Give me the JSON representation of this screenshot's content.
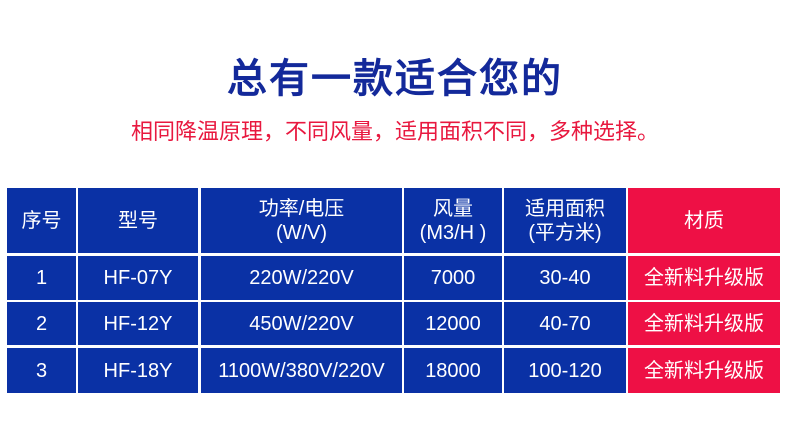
{
  "title": "总有一款适合您的",
  "subtitle": "相同降温原理，不同风量，适用面积不同，多种选择。",
  "colors": {
    "header_blue": "#0a31a5",
    "accent_red": "#ee1045",
    "title_blue": "#13299a"
  },
  "table": {
    "headers": [
      "序号",
      "型号",
      "功率/电压\n(W/V)",
      "风量\n(M3/H )",
      "适用面积\n(平方米)",
      "材质"
    ],
    "rows": [
      [
        "1",
        "HF-07Y",
        "220W/220V",
        "7000",
        "30-40",
        "全新料升级版"
      ],
      [
        "2",
        "HF-12Y",
        "450W/220V",
        "12000",
        "40-70",
        "全新料升级版"
      ],
      [
        "3",
        "HF-18Y",
        "1100W/380V/220V",
        "18000",
        "100-120",
        "全新料升级版"
      ]
    ]
  }
}
